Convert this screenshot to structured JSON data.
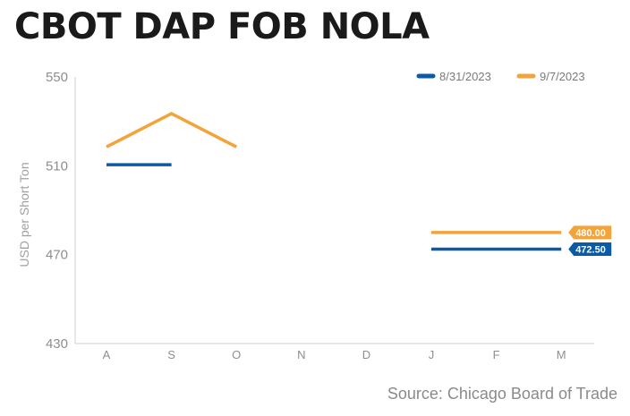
{
  "title": "CBOT DAP FOB NOLA",
  "source": "Source: Chicago Board of Trade",
  "chart_data": {
    "type": "line",
    "title": "CBOT DAP FOB NOLA",
    "xlabel": "",
    "ylabel": "USD per Short Ton",
    "categories": [
      "A",
      "S",
      "O",
      "N",
      "D",
      "J",
      "F",
      "M"
    ],
    "ylim": [
      430,
      550
    ],
    "yticks": [
      430,
      470,
      510,
      550
    ],
    "grid": false,
    "legend": "top-right",
    "series": [
      {
        "name": "8/31/2023",
        "color": "#0a5aa5",
        "values": [
          510.5,
          510.5,
          null,
          null,
          null,
          472.5,
          472.5,
          472.5
        ],
        "end_label": "472.50"
      },
      {
        "name": "9/7/2023",
        "color": "#f2a33a",
        "values": [
          518.5,
          533.5,
          518.5,
          null,
          null,
          480.0,
          480.0,
          480.0
        ],
        "end_label": "480.00"
      }
    ]
  }
}
